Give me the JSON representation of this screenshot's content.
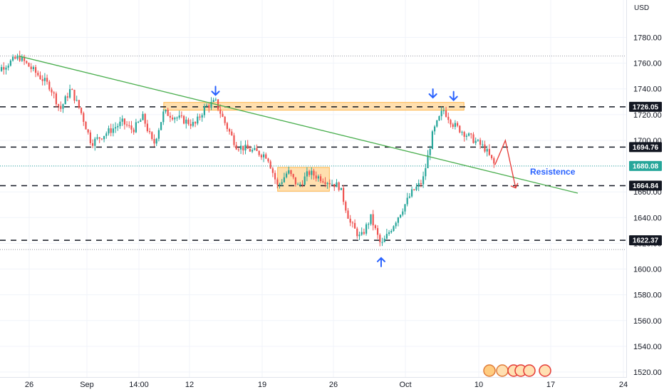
{
  "chart_data": {
    "type": "candlestick",
    "currency": "USD",
    "colors": {
      "up": "#26a69a",
      "down": "#ef5350",
      "trend": "#4caf50",
      "zone": "#ffb74d",
      "arrow": "#2962ff",
      "projection": "#e53935",
      "grid": "#f0f3fa",
      "current": "#26a69a"
    },
    "y_ticks": [
      1520,
      1540,
      1560,
      1580,
      1600,
      1620,
      1640,
      1660,
      1680,
      1700,
      1720,
      1740,
      1760,
      1780
    ],
    "ylim": [
      1508,
      1792
    ],
    "x_ticks": [
      "26",
      "Sep",
      "14:00",
      "12",
      "19",
      "26",
      "Oct",
      "10",
      "17",
      "24"
    ],
    "levels": [
      {
        "price": 1726.05,
        "label": "1726.05"
      },
      {
        "price": 1694.76,
        "label": "1694.76"
      },
      {
        "price": 1664.84,
        "label": "1664.84"
      },
      {
        "price": 1622.37,
        "label": "1622.37"
      }
    ],
    "current_price": {
      "price": 1680.08,
      "label": "1680.08"
    },
    "dotted_levels": [
      1765.5,
      1615.2
    ],
    "annotation": "Resistence",
    "trendline": {
      "from": {
        "date": "2023-08-25",
        "price": 1765.5
      },
      "to": {
        "date": "2023-10-18",
        "price": 1659.0
      }
    },
    "zones": [
      {
        "from": "2023-09-08",
        "to": "2023-10-07",
        "low": 1723.5,
        "high": 1729.5
      },
      {
        "from": "2023-09-19",
        "to": "2023-09-24",
        "low": 1660.5,
        "high": 1679.0
      }
    ],
    "arrows_down": [
      {
        "date": "2023-09-13",
        "price": 1733
      },
      {
        "date": "2023-10-04",
        "price": 1731
      },
      {
        "date": "2023-10-06",
        "price": 1729
      }
    ],
    "arrows_up": [
      {
        "date": "2023-09-29",
        "price": 1612
      }
    ],
    "projection": [
      {
        "date": "2023-10-10",
        "price": 1681
      },
      {
        "date": "2023-10-11",
        "price": 1700
      },
      {
        "date": "2023-10-12",
        "price": 1663
      }
    ],
    "ohlc_points": [
      [
        "2023-08-22",
        1744
      ],
      [
        "2023-08-23",
        1755
      ],
      [
        "2023-08-24",
        1760
      ],
      [
        "2023-08-25",
        1765
      ],
      [
        "2023-08-28",
        1742
      ],
      [
        "2023-08-29",
        1724
      ],
      [
        "2023-08-30",
        1740
      ],
      [
        "2023-08-31",
        1722
      ],
      [
        "2023-09-01",
        1698
      ],
      [
        "2023-09-04",
        1714
      ],
      [
        "2023-09-05",
        1708
      ],
      [
        "2023-09-06",
        1718
      ],
      [
        "2023-09-07",
        1696
      ],
      [
        "2023-09-08",
        1722
      ],
      [
        "2023-09-11",
        1712
      ],
      [
        "2023-09-12",
        1726
      ],
      [
        "2023-09-13",
        1730
      ],
      [
        "2023-09-14",
        1712
      ],
      [
        "2023-09-15",
        1696
      ],
      [
        "2023-09-18",
        1688
      ],
      [
        "2023-09-19",
        1664
      ],
      [
        "2023-09-20",
        1676
      ],
      [
        "2023-09-21",
        1664
      ],
      [
        "2023-09-22",
        1675
      ],
      [
        "2023-09-25",
        1664
      ],
      [
        "2023-09-26",
        1636
      ],
      [
        "2023-09-27",
        1624
      ],
      [
        "2023-09-28",
        1640
      ],
      [
        "2023-09-29",
        1618
      ],
      [
        "2023-10-02",
        1660
      ],
      [
        "2023-10-03",
        1668
      ],
      [
        "2023-10-04",
        1706
      ],
      [
        "2023-10-05",
        1724
      ],
      [
        "2023-10-06",
        1712
      ],
      [
        "2023-10-09",
        1694
      ],
      [
        "2023-10-10",
        1680.08
      ]
    ]
  }
}
